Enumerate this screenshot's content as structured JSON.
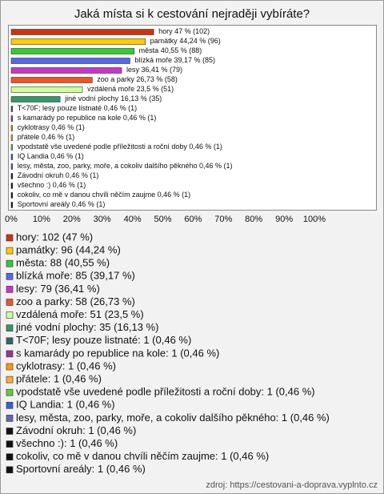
{
  "chart_data": {
    "type": "bar",
    "orientation": "horizontal",
    "title": "Jaká místa si k cestování nejraději vybíráte?",
    "categories": [
      "hory",
      "památky",
      "města",
      "blízká moře",
      "lesy",
      "zoo a parky",
      "vzdálená moře",
      "jiné vodní plochy",
      "T<70F; lesy pouze listnaté",
      "s kamarády po republice na kole",
      "cyklotrasy",
      "přátele",
      "vpodstatě vše uvedené podle příležitosti a roční doby",
      "IQ Landia",
      "lesy, města, zoo, parky, moře, a cokoliv dalšího pěkného",
      "Závodní okruh",
      "všechno :)",
      "cokoliv, co mě v danou chvíli něčím zaujme",
      "Sportovní areály"
    ],
    "values": [
      47,
      44.24,
      40.55,
      39.17,
      36.41,
      26.73,
      23.5,
      16.13,
      0.46,
      0.46,
      0.46,
      0.46,
      0.46,
      0.46,
      0.46,
      0.46,
      0.46,
      0.46,
      0.46
    ],
    "value_labels": [
      "47 % (102)",
      "44,24 % (96)",
      "40,55 % (88)",
      "39,17 % (85)",
      "36,41 % (79)",
      "26,73 % (58)",
      "23,5 % (51)",
      "16,13 % (35)",
      "0,46 % (1)",
      "0,46 % (1)",
      "0,46 % (1)",
      "0,46 % (1)",
      "0,46 % (1)",
      "0,46 % (1)",
      "0,46 % (1)",
      "0,46 % (1)",
      "0,46 % (1)",
      "0,46 % (1)",
      "0,46 % (1)"
    ],
    "colors": [
      "#cc3311",
      "#ffcc00",
      "#33cc33",
      "#5566ee",
      "#cc33cc",
      "#ee5522",
      "#ccff99",
      "#339966",
      "#336666",
      "#993399",
      "#ff9900",
      "#ffaa33",
      "#66cc33",
      "#3366cc",
      "#6666aa",
      "#111111",
      "#111111",
      "#111111",
      "#111111"
    ],
    "legend_labels": [
      "hory: 102 (47 %)",
      "památky: 96 (44,24 %)",
      "města: 88 (40,55 %)",
      "blízká moře: 85 (39,17 %)",
      "lesy: 79 (36,41 %)",
      "zoo a parky: 58 (26,73 %)",
      "vzdálená moře: 51 (23,5 %)",
      "jiné vodní plochy: 35 (16,13 %)",
      "T<70F; lesy pouze listnaté: 1 (0,46 %)",
      "s kamarády po republice na kole: 1 (0,46 %)",
      "cyklotrasy: 1 (0,46 %)",
      "přátele: 1 (0,46 %)",
      "vpodstatě vše uvedené podle příležitosti a roční doby: 1 (0,46 %)",
      "IQ Landia: 1 (0,46 %)",
      "lesy, města, zoo, parky, moře, a cokoliv dalšího pěkného: 1 (0,46 %)",
      "Závodní okruh: 1 (0,46 %)",
      "všechno :): 1 (0,46 %)",
      "cokoliv, co mě v danou chvíli něčím zaujme: 1 (0,46 %)",
      "Sportovní areály: 1 (0,46 %)"
    ],
    "xlim": [
      0,
      100
    ],
    "xticks": [
      {
        "value": 0,
        "label": "0%"
      },
      {
        "value": 10,
        "label": "10%"
      },
      {
        "value": 20,
        "label": "20%"
      },
      {
        "value": 30,
        "label": "30%"
      },
      {
        "value": 40,
        "label": "40%"
      },
      {
        "value": 50,
        "label": "50%"
      },
      {
        "value": 60,
        "label": "60%"
      },
      {
        "value": 70,
        "label": "70%"
      },
      {
        "value": 80,
        "label": "80%"
      },
      {
        "value": 90,
        "label": "90%"
      },
      {
        "value": 100,
        "label": "100%"
      }
    ],
    "source": "zdroj: https://cestovani-a-doprava.vyplnto.cz"
  }
}
